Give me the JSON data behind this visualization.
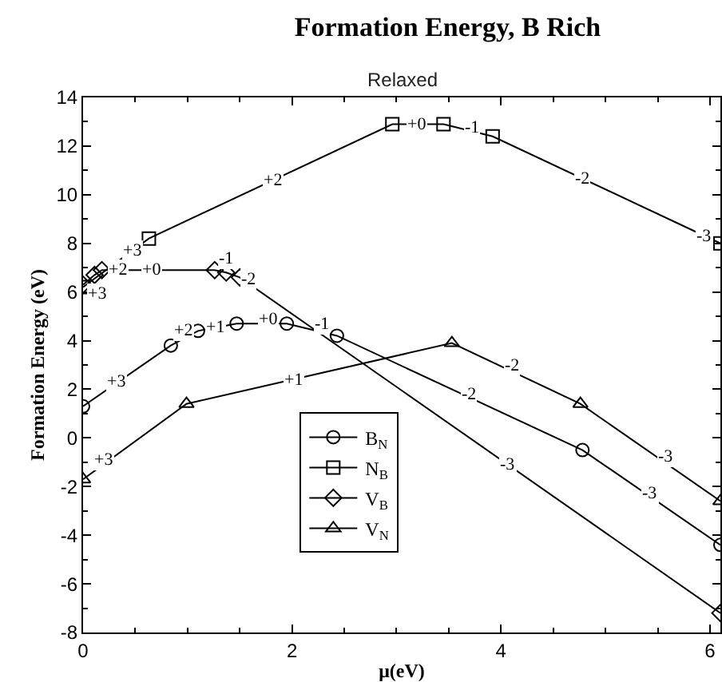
{
  "chart_data": {
    "type": "line",
    "title": "Formation Energy, B Rich",
    "subtitle": "Relaxed",
    "xlabel": "μ(eV)",
    "ylabel": "Formation Energy (eV)",
    "xlim": [
      0,
      6.1
    ],
    "xticks": [
      0,
      2,
      4,
      6
    ],
    "ylim": [
      -8,
      14
    ],
    "yticks": [
      -8,
      -6,
      -4,
      -2,
      0,
      2,
      4,
      6,
      8,
      10,
      12,
      14
    ],
    "grid": false,
    "legend": "center left",
    "line_style": "solid",
    "series": [
      {
        "name": "B$_{N}$",
        "color": "#000000",
        "marker": "circle",
        "x": [
          0,
          0.84,
          1.1,
          1.47,
          1.95,
          2.43,
          4.78,
          6.1
        ],
        "values": [
          1.3,
          3.8,
          4.4,
          4.7,
          4.7,
          4.2,
          -0.5,
          -4.4
        ]
      },
      {
        "name": "N$_{B}$",
        "color": "#000000",
        "marker": "square",
        "x": [
          0,
          0.63,
          2.96,
          3.45,
          3.92,
          6.1
        ],
        "values": [
          6.2,
          8.2,
          12.9,
          12.9,
          12.4,
          8.0
        ]
      },
      {
        "name": "V$_{B}$",
        "color": "#000000",
        "marker": "diamond",
        "x": [
          0,
          0.11,
          0.18,
          1.26,
          1.37,
          1.5,
          6.1
        ],
        "values": [
          6.3,
          6.7,
          6.9,
          6.9,
          6.8,
          6.6,
          -7.2
        ]
      },
      {
        "name": "V$_{N}$",
        "color": "#000000",
        "marker": "triangle",
        "x": [
          0,
          0.99,
          3.53,
          4.76,
          6.1
        ],
        "values": [
          -1.7,
          1.4,
          3.9,
          1.4,
          -2.6
        ]
      }
    ],
    "annotations": [
      {
        "text": "+3",
        "x": 0.48,
        "y": 7.72
      },
      {
        "text": "+2",
        "x": 1.82,
        "y": 10.6
      },
      {
        "text": "+0",
        "x": 3.2,
        "y": 12.9
      },
      {
        "text": "-1",
        "x": 3.73,
        "y": 12.75
      },
      {
        "text": "-2",
        "x": 4.78,
        "y": 10.66
      },
      {
        "text": "-3",
        "x": 5.95,
        "y": 8.3
      },
      {
        "text": "+3",
        "x": 0.14,
        "y": 5.9
      },
      {
        "text": "+2",
        "x": 0.33,
        "y": 6.9
      },
      {
        "text": "+0",
        "x": 0.65,
        "y": 6.9
      },
      {
        "text": "-1",
        "x": 1.37,
        "y": 7.4
      },
      {
        "text": "-2",
        "x": 1.58,
        "y": 6.5
      },
      {
        "text": "-3",
        "x": 4.07,
        "y": -1.1
      },
      {
        "text": "+3",
        "x": 0.32,
        "y": 2.3
      },
      {
        "text": "+2",
        "x": 0.96,
        "y": 4.4
      },
      {
        "text": "+1",
        "x": 1.27,
        "y": 4.54
      },
      {
        "text": "+0",
        "x": 1.77,
        "y": 4.85
      },
      {
        "text": "-1",
        "x": 2.28,
        "y": 4.7
      },
      {
        "text": "-2",
        "x": 3.69,
        "y": 1.8
      },
      {
        "text": "-3",
        "x": 5.43,
        "y": -2.3
      },
      {
        "text": "+3",
        "x": 0.2,
        "y": -0.9
      },
      {
        "text": "+1",
        "x": 2.02,
        "y": 2.4
      },
      {
        "text": "-2",
        "x": 4.1,
        "y": 3.0
      },
      {
        "text": "-3",
        "x": 5.58,
        "y": -0.75
      }
    ]
  }
}
